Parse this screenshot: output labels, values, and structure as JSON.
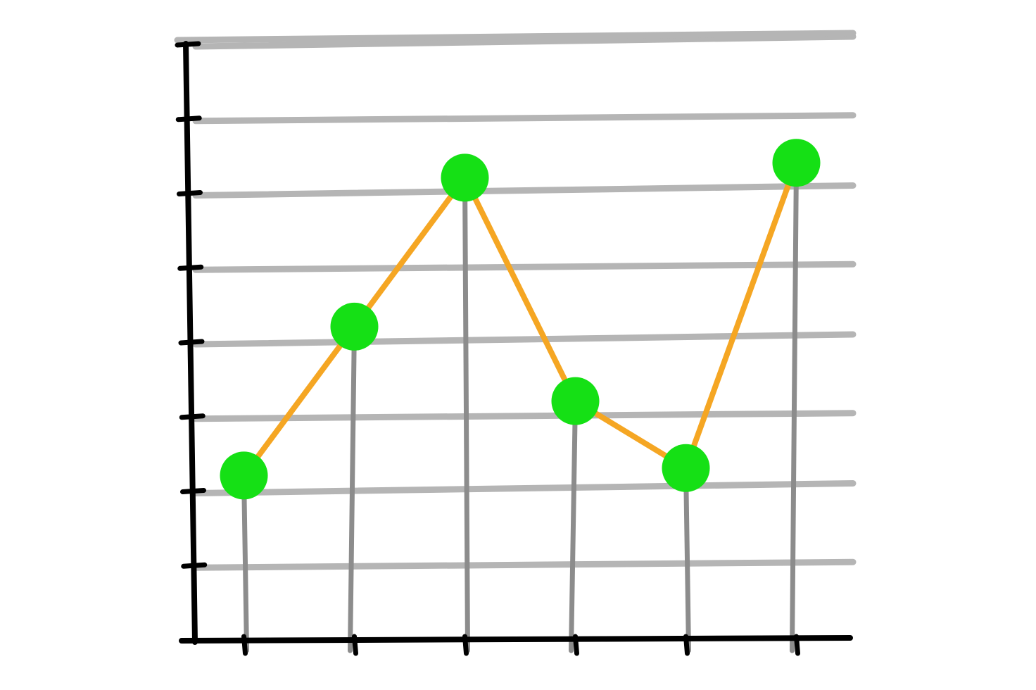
{
  "chart_data": {
    "type": "line",
    "title": "",
    "xlabel": "",
    "ylabel": "",
    "style": "hand-drawn",
    "x": [
      1,
      2,
      3,
      4,
      5,
      6
    ],
    "series": [
      {
        "values": [
          2.2,
          4.2,
          6.2,
          3.2,
          2.3,
          6.4
        ],
        "line_color": "#f5a623",
        "marker_color": "#15e015",
        "drop_line_color": "#8c8c8c"
      }
    ],
    "ylim": [
      0,
      8
    ],
    "xlim": [
      0.5,
      6.5
    ],
    "grid": true,
    "grid_color": "#b5b5b5",
    "axis_color": "#000000",
    "legend": "none"
  }
}
